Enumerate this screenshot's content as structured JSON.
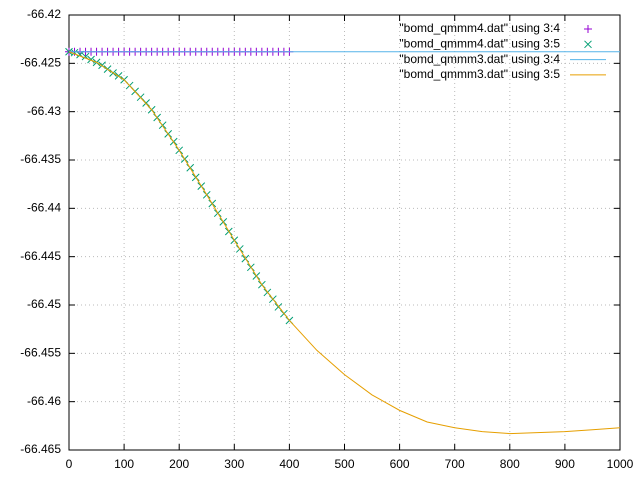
{
  "chart_data": {
    "type": "line",
    "xlim": [
      0,
      1000
    ],
    "xticks": [
      0,
      100,
      200,
      300,
      400,
      500,
      600,
      700,
      800,
      900,
      1000
    ],
    "ylim": [
      -66.465,
      -66.42
    ],
    "yticks": [
      -66.42,
      -66.425,
      -66.43,
      -66.435,
      -66.44,
      -66.445,
      -66.45,
      -66.455,
      -66.46,
      -66.465
    ],
    "grid": true,
    "legend": "top-right",
    "series": [
      {
        "name": "\"bomd_qmmm4.dat\" using 3:4",
        "color": "#9400d3",
        "style": "points",
        "marker": "plus",
        "x": [
          0,
          10,
          20,
          30,
          40,
          50,
          60,
          70,
          80,
          90,
          100,
          110,
          120,
          130,
          140,
          150,
          160,
          170,
          180,
          190,
          200,
          210,
          220,
          230,
          240,
          250,
          260,
          270,
          280,
          290,
          300,
          310,
          320,
          330,
          340,
          350,
          360,
          370,
          380,
          390,
          400
        ],
        "values": [
          -66.4238,
          -66.4238,
          -66.4238,
          -66.4238,
          -66.4238,
          -66.4238,
          -66.4238,
          -66.4238,
          -66.4238,
          -66.4238,
          -66.4238,
          -66.4238,
          -66.4238,
          -66.4238,
          -66.4238,
          -66.4238,
          -66.4238,
          -66.4238,
          -66.4238,
          -66.4238,
          -66.4238,
          -66.4238,
          -66.4238,
          -66.4238,
          -66.4238,
          -66.4238,
          -66.4238,
          -66.4238,
          -66.4238,
          -66.4238,
          -66.4238,
          -66.4238,
          -66.4238,
          -66.4238,
          -66.4238,
          -66.4238,
          -66.4238,
          -66.4238,
          -66.4238,
          -66.4238,
          -66.4238
        ]
      },
      {
        "name": "\"bomd_qmmm4.dat\" using 3:5",
        "color": "#009e73",
        "style": "points",
        "marker": "cross",
        "x": [
          0,
          10,
          20,
          30,
          40,
          50,
          60,
          70,
          80,
          90,
          100,
          110,
          120,
          130,
          140,
          150,
          160,
          170,
          180,
          190,
          200,
          210,
          220,
          230,
          240,
          250,
          260,
          270,
          280,
          290,
          300,
          310,
          320,
          330,
          340,
          350,
          360,
          370,
          380,
          390,
          400
        ],
        "values": [
          -66.4238,
          -66.4239,
          -66.4241,
          -66.4243,
          -66.4246,
          -66.4249,
          -66.4252,
          -66.4256,
          -66.426,
          -66.4263,
          -66.4267,
          -66.4273,
          -66.4279,
          -66.4285,
          -66.4291,
          -66.4298,
          -66.4306,
          -66.4314,
          -66.4323,
          -66.4331,
          -66.434,
          -66.4349,
          -66.4358,
          -66.4368,
          -66.4377,
          -66.4386,
          -66.4395,
          -66.4405,
          -66.4414,
          -66.4424,
          -66.4433,
          -66.4442,
          -66.4452,
          -66.4461,
          -66.447,
          -66.4479,
          -66.4487,
          -66.4494,
          -66.4502,
          -66.4509,
          -66.4516
        ]
      },
      {
        "name": "\"bomd_qmmm3.dat\" using 3:4",
        "color": "#56b4e9",
        "style": "lines",
        "x": [
          0,
          1000
        ],
        "values": [
          -66.4238,
          -66.4238
        ]
      },
      {
        "name": "\"bomd_qmmm3.dat\" using 3:5",
        "color": "#e69f00",
        "style": "lines",
        "x": [
          0,
          50,
          100,
          150,
          200,
          250,
          300,
          350,
          400,
          450,
          500,
          550,
          600,
          650,
          700,
          750,
          800,
          850,
          900,
          950,
          1000
        ],
        "values": [
          -66.4238,
          -66.4249,
          -66.4267,
          -66.4298,
          -66.434,
          -66.4386,
          -66.4433,
          -66.4479,
          -66.4516,
          -66.4547,
          -66.4572,
          -66.4593,
          -66.4609,
          -66.4621,
          -66.4627,
          -66.4631,
          -66.4633,
          -66.4632,
          -66.4631,
          -66.4629,
          -66.4627
        ]
      }
    ]
  }
}
